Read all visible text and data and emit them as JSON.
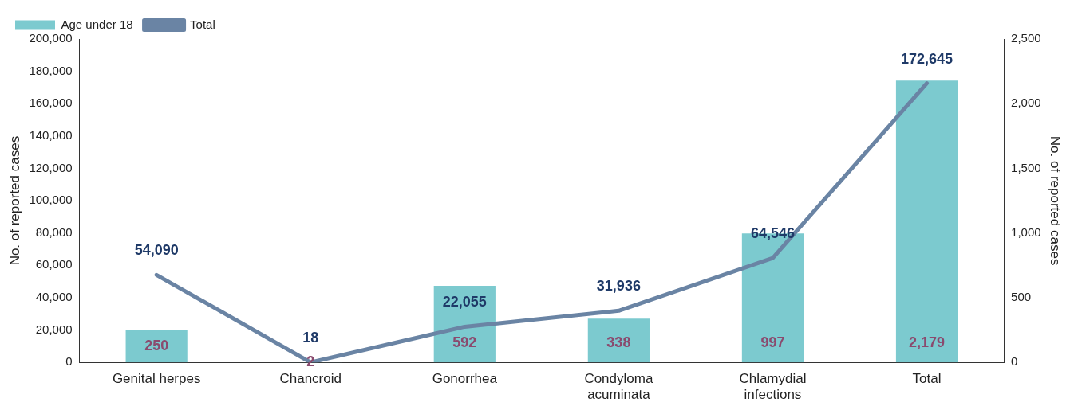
{
  "chart_data": {
    "type": "bar",
    "categories": [
      "Genital herpes",
      "Chancroid",
      "Gonorrhea",
      "Condyloma acuminata",
      "Chlamydial infections",
      "Total"
    ],
    "series": [
      {
        "name": "Age under 18",
        "axis": "y2",
        "color": "#7ccacf",
        "values": [
          250,
          2,
          592,
          338,
          997,
          2179
        ],
        "value_labels": [
          "250",
          "2",
          "592",
          "338",
          "997",
          "2,179"
        ]
      },
      {
        "name": "Total",
        "type": "line",
        "axis": "y",
        "color": "#6a84a4",
        "values": [
          54090,
          18,
          22055,
          31936,
          64546,
          172645
        ],
        "value_labels": [
          "54,090",
          "18",
          "22,055",
          "31,936",
          "64,546",
          "172,645"
        ]
      }
    ],
    "ylabel": "No. of reported cases",
    "y2label": "No. of reported cases",
    "ylim": [
      0,
      200000
    ],
    "yticks": [
      0,
      {
        "value": 20000,
        "label": "20,000"
      },
      {
        "value": 40000,
        "label": "40,000"
      },
      {
        "value": 60000,
        "label": "60,000"
      },
      {
        "value": 80000,
        "label": "80,000"
      },
      {
        "value": 100000,
        "label": "100,000"
      },
      {
        "value": 120000,
        "label": "120,000"
      },
      {
        "value": 140000,
        "label": "140,000"
      },
      {
        "value": 160000,
        "label": "160,000"
      },
      {
        "value": 180000,
        "label": "180,000"
      },
      {
        "value": 200000,
        "label": "200,000"
      }
    ],
    "y2lim": [
      0,
      2500
    ],
    "y2ticks": [
      0,
      500,
      {
        "value": 1000,
        "label": "1,000"
      },
      {
        "value": 1500,
        "label": "1,500"
      },
      {
        "value": 2000,
        "label": "2,000"
      },
      {
        "value": 2500,
        "label": "2,500"
      }
    ],
    "legend": "top left",
    "grid": false,
    "marker": "none"
  }
}
